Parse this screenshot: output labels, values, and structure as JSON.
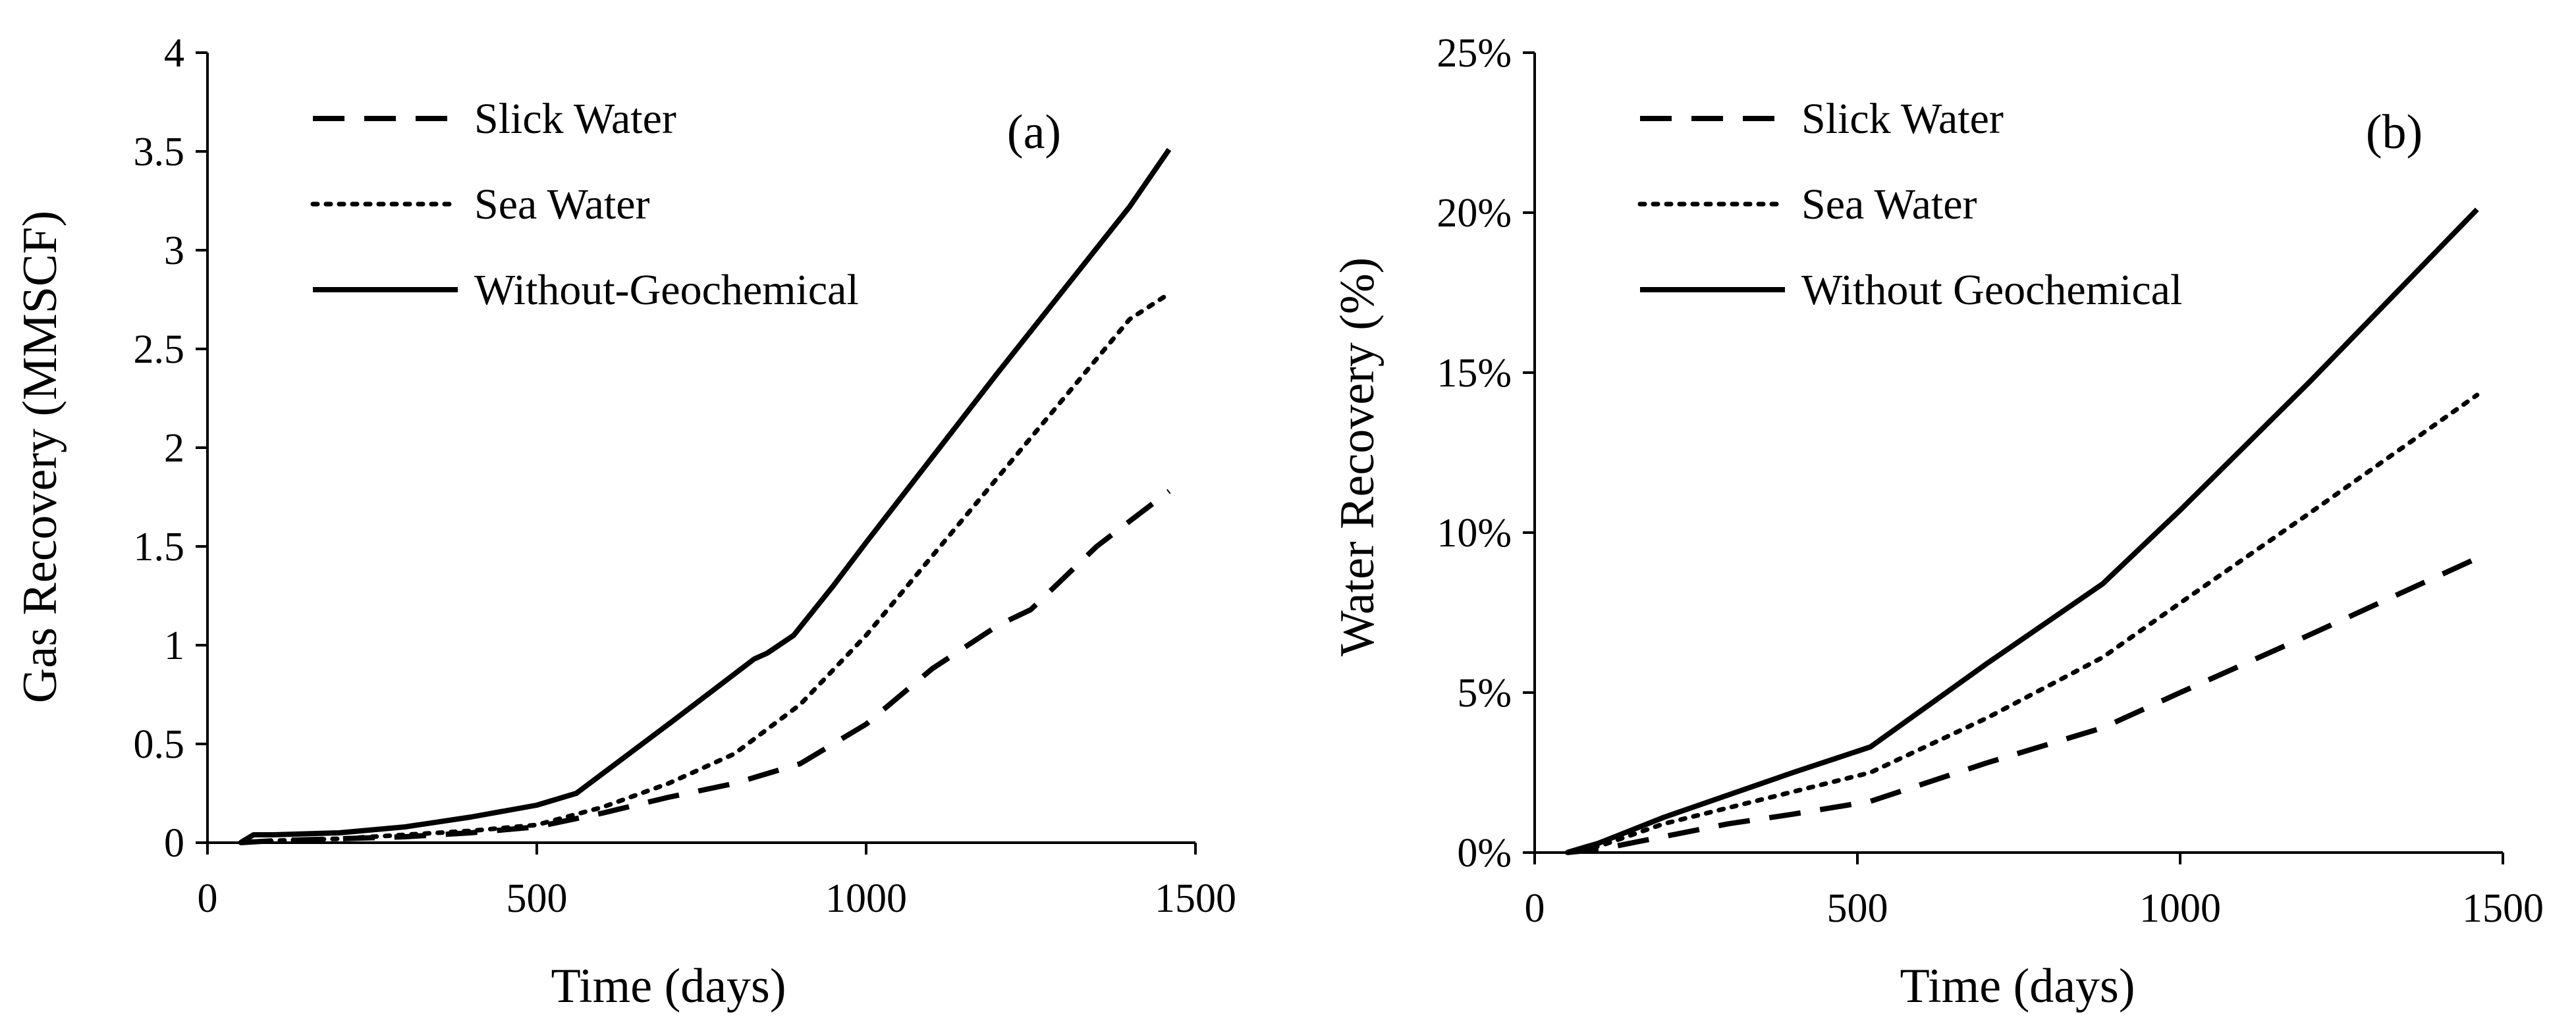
{
  "chart_data": [
    {
      "type": "line",
      "panel_label": "(a)",
      "xlabel": "Time (days)",
      "ylabel": "Gas Recovery (MMSCF)",
      "xlim": [
        0,
        1500
      ],
      "ylim": [
        0,
        4
      ],
      "xticks": [
        0,
        500,
        1000,
        1500
      ],
      "xtick_labels": [
        "0",
        "500",
        "1000",
        "1500"
      ],
      "yticks": [
        0,
        0.5,
        1,
        1.5,
        2,
        2.5,
        3,
        3.5,
        4
      ],
      "ytick_labels": [
        "0",
        "0.5",
        "1",
        "1.5",
        "2",
        "2.5",
        "3",
        "3.5",
        "4"
      ],
      "legend_position": "top-left",
      "series": [
        {
          "name": "Slick Water",
          "style": "dashed",
          "points": [
            [
              50,
              0
            ],
            [
              100,
              0.01
            ],
            [
              200,
              0.02
            ],
            [
              300,
              0.03
            ],
            [
              400,
              0.05
            ],
            [
              500,
              0.08
            ],
            [
              600,
              0.15
            ],
            [
              700,
              0.23
            ],
            [
              800,
              0.3
            ],
            [
              900,
              0.4
            ],
            [
              1000,
              0.6
            ],
            [
              1100,
              0.88
            ],
            [
              1200,
              1.1
            ],
            [
              1250,
              1.18
            ],
            [
              1350,
              1.5
            ],
            [
              1460,
              1.78
            ]
          ]
        },
        {
          "name": "Sea Water",
          "style": "dotted",
          "points": [
            [
              50,
              0
            ],
            [
              100,
              0.01
            ],
            [
              200,
              0.02
            ],
            [
              300,
              0.04
            ],
            [
              400,
              0.06
            ],
            [
              500,
              0.09
            ],
            [
              600,
              0.18
            ],
            [
              700,
              0.3
            ],
            [
              800,
              0.45
            ],
            [
              900,
              0.7
            ],
            [
              1000,
              1.05
            ],
            [
              1100,
              1.45
            ],
            [
              1200,
              1.85
            ],
            [
              1300,
              2.25
            ],
            [
              1400,
              2.65
            ],
            [
              1460,
              2.78
            ]
          ]
        },
        {
          "name": "Without-Geochemical",
          "style": "solid",
          "points": [
            [
              50,
              0
            ],
            [
              70,
              0.04
            ],
            [
              100,
              0.04
            ],
            [
              200,
              0.05
            ],
            [
              300,
              0.08
            ],
            [
              400,
              0.13
            ],
            [
              450,
              0.16
            ],
            [
              500,
              0.19
            ],
            [
              560,
              0.25
            ],
            [
              600,
              0.35
            ],
            [
              700,
              0.6
            ],
            [
              830,
              0.93
            ],
            [
              850,
              0.96
            ],
            [
              890,
              1.05
            ],
            [
              950,
              1.3
            ],
            [
              1000,
              1.52
            ],
            [
              1100,
              1.95
            ],
            [
              1200,
              2.38
            ],
            [
              1300,
              2.8
            ],
            [
              1400,
              3.22
            ],
            [
              1460,
              3.51
            ]
          ]
        }
      ]
    },
    {
      "type": "line",
      "panel_label": "(b)",
      "xlabel": "Time (days)",
      "ylabel": "Water Recovery (%)",
      "xlim": [
        0,
        1500
      ],
      "ylim": [
        0,
        25
      ],
      "xticks": [
        0,
        500,
        1000,
        1500
      ],
      "xtick_labels": [
        "0",
        "500",
        "1000",
        "1500"
      ],
      "yticks": [
        0,
        5,
        10,
        15,
        20,
        25
      ],
      "ytick_labels": [
        "0%",
        "5%",
        "10%",
        "15%",
        "20%",
        "25%"
      ],
      "legend_position": "top-left",
      "series": [
        {
          "name": "Slick Water",
          "style": "dashed",
          "points": [
            [
              50,
              0
            ],
            [
              100,
              0.1
            ],
            [
              200,
              0.5
            ],
            [
              300,
              0.9
            ],
            [
              400,
              1.2
            ],
            [
              520,
              1.6
            ],
            [
              700,
              2.8
            ],
            [
              880,
              3.9
            ],
            [
              1000,
              5.0
            ],
            [
              1200,
              6.8
            ],
            [
              1460,
              9.2
            ]
          ]
        },
        {
          "name": "Sea Water",
          "style": "dotted",
          "points": [
            [
              50,
              0
            ],
            [
              100,
              0.2
            ],
            [
              200,
              0.9
            ],
            [
              300,
              1.4
            ],
            [
              400,
              1.9
            ],
            [
              520,
              2.5
            ],
            [
              700,
              4.2
            ],
            [
              880,
              6.1
            ],
            [
              1000,
              7.8
            ],
            [
              1200,
              10.6
            ],
            [
              1460,
              14.3
            ]
          ]
        },
        {
          "name": "Without Geochemical",
          "style": "solid",
          "points": [
            [
              50,
              0
            ],
            [
              100,
              0.3
            ],
            [
              200,
              1.1
            ],
            [
              300,
              1.8
            ],
            [
              400,
              2.5
            ],
            [
              520,
              3.3
            ],
            [
              700,
              5.9
            ],
            [
              880,
              8.4
            ],
            [
              1000,
              10.7
            ],
            [
              1200,
              14.7
            ],
            [
              1460,
              20.1
            ]
          ]
        }
      ]
    }
  ]
}
